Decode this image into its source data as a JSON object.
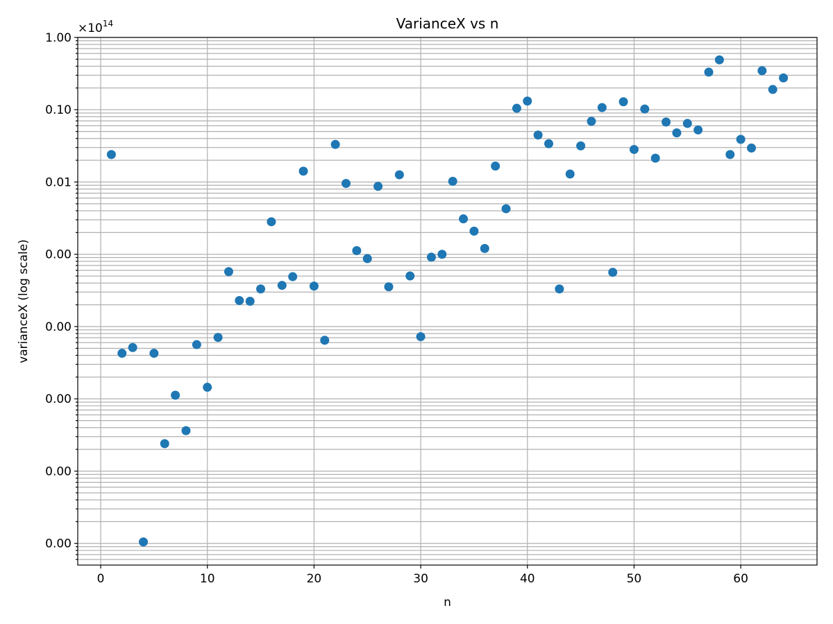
{
  "chart_data": {
    "type": "scatter",
    "title": "VarianceX vs n",
    "xlabel": "n",
    "ylabel": "varianceX (log scale)",
    "y_offset_text": "×10",
    "y_offset_exponent": "14",
    "xscale": "linear",
    "yscale": "log",
    "xlim": [
      -2.15,
      67.15
    ],
    "ylim_decades": [
      -7.3,
      0
    ],
    "x_ticks": [
      0,
      10,
      20,
      30,
      40,
      50,
      60
    ],
    "x_tick_labels": [
      "0",
      "10",
      "20",
      "30",
      "40",
      "50",
      "60"
    ],
    "y_tick_decades": [
      0,
      -1,
      -2,
      -3,
      -4,
      -5,
      -6,
      -7
    ],
    "y_tick_labels": [
      "1.00",
      "0.10",
      "0.01",
      "0.00",
      "0.00",
      "0.00",
      "0.00",
      "0.00"
    ],
    "grid": true,
    "marker_color": "#1f77b4",
    "series": [
      {
        "x": [
          1,
          2,
          3,
          4,
          5,
          6,
          7,
          8,
          9,
          10,
          11,
          12,
          13,
          14,
          15,
          16,
          17,
          18,
          19,
          20,
          21,
          22,
          23,
          24,
          25,
          26,
          27,
          28,
          29,
          30,
          31,
          32,
          33,
          34,
          35,
          36,
          37,
          38,
          39,
          40,
          41,
          42,
          43,
          44,
          45,
          46,
          47,
          48,
          49,
          50,
          51,
          52,
          53,
          54,
          55,
          56,
          57,
          58,
          59,
          60,
          61,
          62,
          63,
          64
        ],
        "log10_y": [
          -1.62,
          -4.37,
          -4.29,
          -6.98,
          -4.37,
          -5.62,
          -4.95,
          -5.44,
          -4.25,
          -4.84,
          -4.15,
          -3.24,
          -3.64,
          -3.65,
          -3.48,
          -2.55,
          -3.43,
          -3.31,
          -1.85,
          -3.44,
          -4.19,
          -1.48,
          -2.02,
          -2.95,
          -3.06,
          -2.06,
          -3.45,
          -1.9,
          -3.3,
          -4.14,
          -3.04,
          -3.0,
          -1.99,
          -2.51,
          -2.68,
          -2.92,
          -1.78,
          -2.37,
          -0.98,
          -0.88,
          -1.35,
          -1.47,
          -3.48,
          -1.89,
          -1.5,
          -1.16,
          -0.97,
          -3.25,
          -0.89,
          -1.55,
          -0.99,
          -1.67,
          -1.17,
          -1.32,
          -1.19,
          -1.28,
          -0.48,
          -0.31,
          -1.62,
          -1.41,
          -1.53,
          -0.46,
          -0.72,
          -0.56
        ]
      }
    ]
  }
}
